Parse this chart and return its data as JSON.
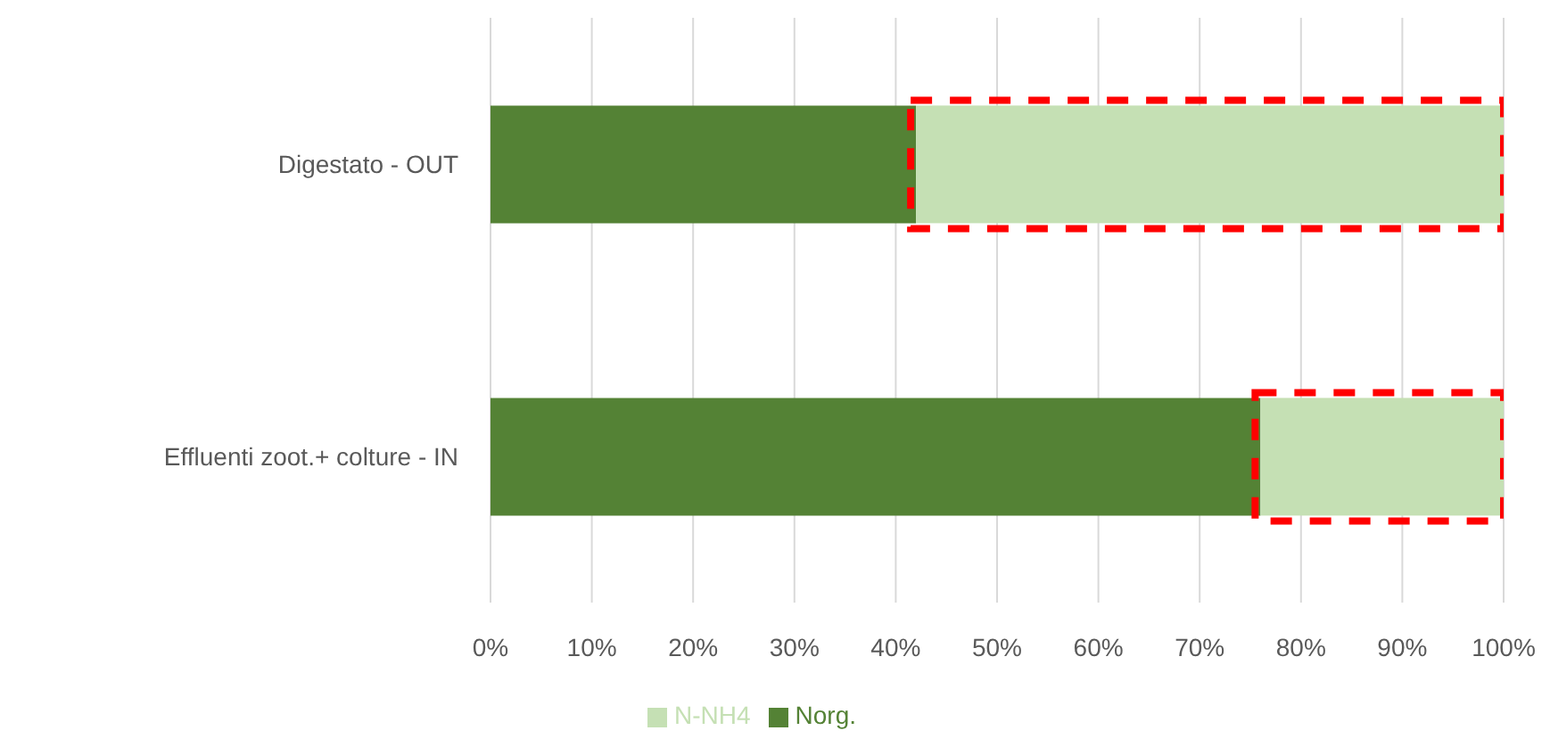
{
  "chart_data": {
    "type": "bar",
    "orientation": "horizontal",
    "stacked": true,
    "categories": [
      "Digestato - OUT",
      "Effluenti zoot.+ colture - IN"
    ],
    "series": [
      {
        "name": "Norg.",
        "color": "#548235",
        "values": [
          42,
          76
        ]
      },
      {
        "name": "N-NH4",
        "color": "#c5e0b4",
        "values": [
          58,
          24
        ]
      }
    ],
    "xlim": [
      0,
      100
    ],
    "xticks": [
      {
        "value": 0,
        "label": "0%"
      },
      {
        "value": 10,
        "label": "10%"
      },
      {
        "value": 20,
        "label": "20%"
      },
      {
        "value": 30,
        "label": "30%"
      },
      {
        "value": 40,
        "label": "40%"
      },
      {
        "value": 50,
        "label": "50%"
      },
      {
        "value": 60,
        "label": "60%"
      },
      {
        "value": 70,
        "label": "70%"
      },
      {
        "value": 80,
        "label": "80%"
      },
      {
        "value": 90,
        "label": "90%"
      },
      {
        "value": 100,
        "label": "100%"
      }
    ],
    "grid": "x",
    "legend": "bottom"
  }
}
